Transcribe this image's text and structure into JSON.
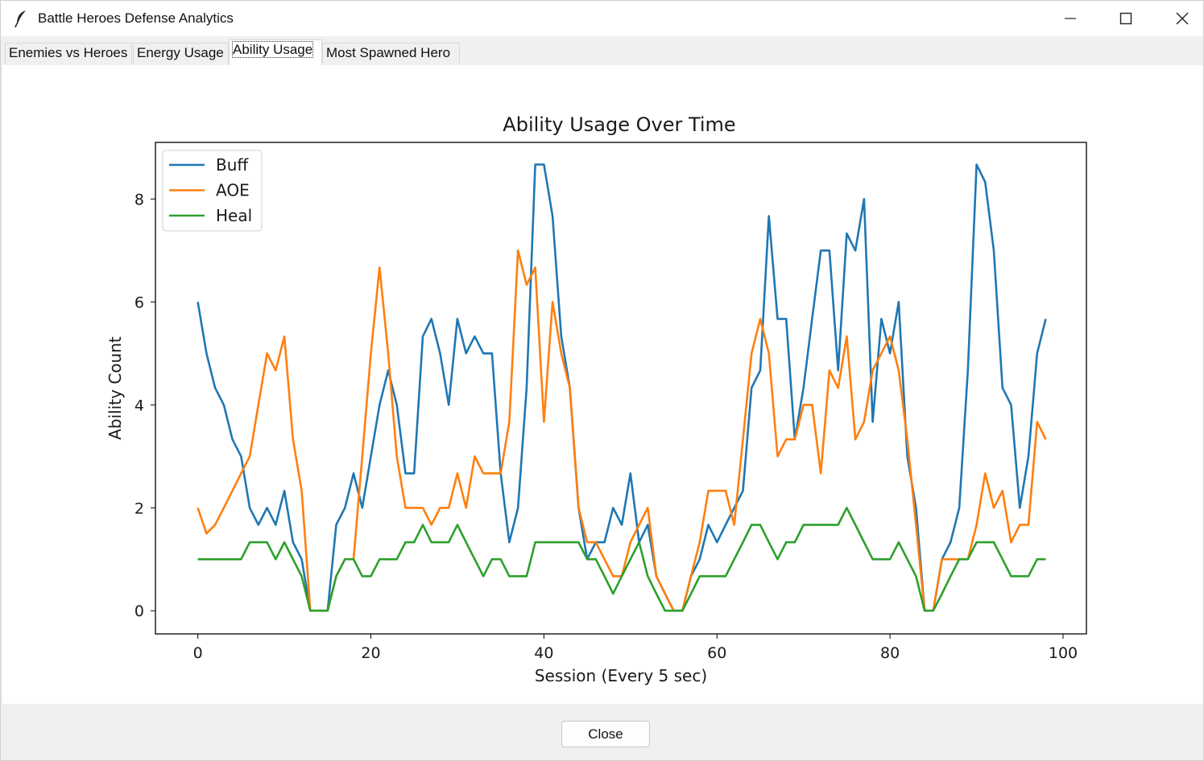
{
  "window": {
    "title": "Battle Heroes Defense Analytics",
    "app_icon": "feather-icon",
    "controls": [
      "minimize-icon",
      "maximize-icon",
      "close-icon"
    ]
  },
  "tabs": [
    {
      "label": "Enemies vs Heroes",
      "active": false
    },
    {
      "label": "Energy Usage",
      "active": false
    },
    {
      "label": "Ability Usage",
      "active": true
    },
    {
      "label": "Most Spawned Hero",
      "active": false
    }
  ],
  "footer": {
    "close_label": "Close"
  },
  "chart_data": {
    "type": "line",
    "title": "Ability Usage Over Time",
    "xlabel": "Session (Every 5 sec)",
    "ylabel": "Ability Count",
    "xlim": [
      -4.9,
      102.7
    ],
    "ylim": [
      -0.45,
      9.1
    ],
    "xticks": [
      0,
      20,
      40,
      60,
      80,
      100
    ],
    "yticks": [
      0,
      2,
      4,
      6,
      8
    ],
    "grid": false,
    "legend": "upper-left",
    "x_start": 0,
    "x_step": 1,
    "series": [
      {
        "name": "Buff",
        "color": "#1f77b4",
        "values": [
          6,
          5,
          4.33,
          4,
          3.33,
          3,
          2,
          1.67,
          2,
          1.67,
          2.33,
          1.33,
          1,
          0,
          0,
          0,
          1.67,
          2,
          2.67,
          2,
          3,
          4,
          4.67,
          4,
          2.67,
          2.67,
          5.33,
          5.67,
          5,
          4,
          5.67,
          5,
          5.33,
          5,
          5,
          2.67,
          1.33,
          2,
          4.33,
          8.67,
          8.67,
          7.67,
          5.33,
          4.33,
          2,
          1,
          1.33,
          1.33,
          2,
          1.67,
          2.67,
          1.33,
          1.67,
          0.67,
          0.33,
          0,
          0,
          0.67,
          1,
          1.67,
          1.33,
          1.67,
          2,
          2.33,
          4.33,
          4.67,
          7.67,
          5.67,
          5.67,
          3.33,
          4.33,
          5.67,
          7,
          7,
          4.67,
          7.33,
          7,
          8,
          3.67,
          5.67,
          5,
          6,
          3,
          2,
          0,
          0,
          1,
          1.33,
          2,
          4.67,
          8.67,
          8.33,
          7,
          4.33,
          4,
          2,
          3,
          5,
          5.67
        ]
      },
      {
        "name": "AOE",
        "color": "#ff7f0e",
        "values": [
          2,
          1.5,
          1.67,
          2,
          2.33,
          2.67,
          3,
          4,
          5,
          4.67,
          5.33,
          3.33,
          2.33,
          0,
          0,
          0,
          0.67,
          1,
          1,
          3,
          5,
          6.67,
          5,
          3,
          2,
          2,
          2,
          1.67,
          2,
          2,
          2.67,
          2,
          3,
          2.67,
          2.67,
          2.67,
          3.67,
          7,
          6.33,
          6.67,
          3.67,
          6,
          5,
          4.33,
          2,
          1.33,
          1.33,
          1,
          0.67,
          0.67,
          1.33,
          1.67,
          2,
          0.67,
          0.33,
          0,
          0,
          0.67,
          1.33,
          2.33,
          2.33,
          2.33,
          1.67,
          3.33,
          5,
          5.67,
          5,
          3,
          3.33,
          3.33,
          4,
          4,
          2.67,
          4.67,
          4.33,
          5.33,
          3.33,
          3.67,
          4.67,
          5,
          5.33,
          4.67,
          3.33,
          1.67,
          0,
          0,
          1,
          1,
          1,
          1,
          1.67,
          2.67,
          2,
          2.33,
          1.33,
          1.67,
          1.67,
          3.67,
          3.33
        ]
      },
      {
        "name": "Heal",
        "color": "#2ca02c",
        "values": [
          1,
          1,
          1,
          1,
          1,
          1,
          1.33,
          1.33,
          1.33,
          1,
          1.33,
          1,
          0.67,
          0,
          0,
          0,
          0.67,
          1,
          1,
          0.67,
          0.67,
          1,
          1,
          1,
          1.33,
          1.33,
          1.67,
          1.33,
          1.33,
          1.33,
          1.67,
          1.33,
          1,
          0.67,
          1,
          1,
          0.67,
          0.67,
          0.67,
          1.33,
          1.33,
          1.33,
          1.33,
          1.33,
          1.33,
          1,
          1,
          0.67,
          0.33,
          0.67,
          1,
          1.33,
          0.67,
          0.33,
          0,
          0,
          0,
          0.33,
          0.67,
          0.67,
          0.67,
          0.67,
          1,
          1.33,
          1.67,
          1.67,
          1.33,
          1,
          1.33,
          1.33,
          1.67,
          1.67,
          1.67,
          1.67,
          1.67,
          2,
          1.67,
          1.33,
          1,
          1,
          1,
          1.33,
          1,
          0.67,
          0,
          0,
          0.33,
          0.67,
          1,
          1,
          1.33,
          1.33,
          1.33,
          1,
          0.67,
          0.67,
          0.67,
          1,
          1
        ]
      }
    ]
  }
}
